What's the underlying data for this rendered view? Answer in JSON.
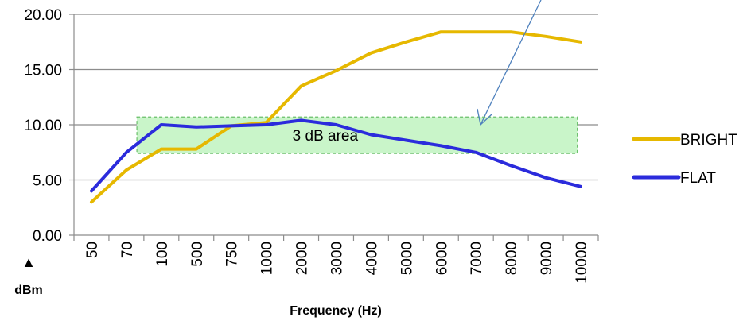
{
  "chart_data": {
    "type": "line",
    "xlabel": "Frequency (Hz)",
    "ylabel": "dBm",
    "y_unit_marker": "▲",
    "ylim": [
      0,
      20
    ],
    "y_tick_labels": [
      "0.00",
      "5.00",
      "10.00",
      "15.00",
      "20.00"
    ],
    "grid": "horizontal",
    "legend_position": "right",
    "categories": [
      "50",
      "70",
      "100",
      "500",
      "750",
      "1000",
      "2000",
      "3000",
      "4000",
      "5000",
      "6000",
      "7000",
      "8000",
      "9000",
      "10000"
    ],
    "series": [
      {
        "name": "BRIGHT",
        "color": "#e6b800",
        "values": [
          3.0,
          5.9,
          7.8,
          7.8,
          9.9,
          10.2,
          13.5,
          14.9,
          16.5,
          17.5,
          18.4,
          18.4,
          18.4,
          18.0,
          17.5
        ]
      },
      {
        "name": "FLAT",
        "color": "#2b2bdc",
        "values": [
          4.0,
          7.5,
          10.0,
          9.8,
          9.9,
          10.0,
          10.4,
          10.0,
          9.1,
          8.6,
          8.1,
          7.5,
          6.3,
          5.2,
          4.4
        ]
      }
    ],
    "annotations": [
      {
        "label": "3 dB area",
        "x_from": 1.8,
        "x_to": 14.4,
        "y_from": 7.4,
        "y_to": 10.7,
        "fill": "#c9f5c9",
        "border": "#6abf6a"
      }
    ]
  }
}
